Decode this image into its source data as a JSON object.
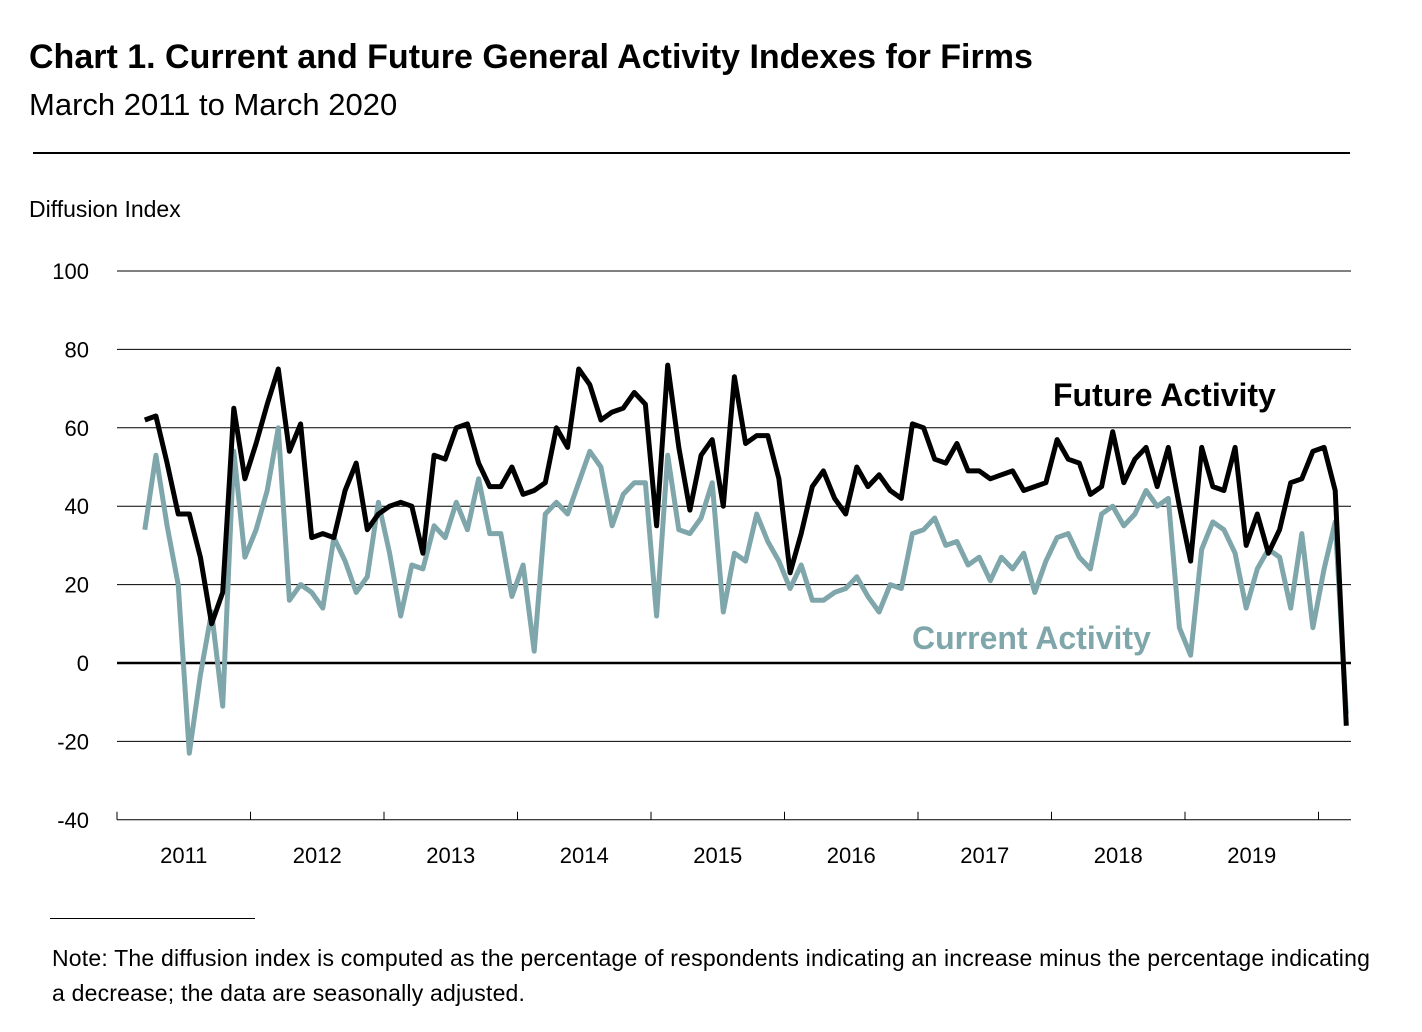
{
  "title": "Chart 1. Current and Future General Activity Indexes for Firms",
  "subtitle": "March 2011 to March 2020",
  "note": "Note:  The diffusion index is computed as the percentage of respondents indicating an increase minus the percentage indicating a decrease; the data are seasonally adjusted.",
  "chart_data": {
    "type": "line",
    "title": "Chart 1. Current and Future General Activity Indexes for Firms",
    "subtitle": "March 2011 to March 2020",
    "ylabel": "Diffusion Index",
    "xlabel": "",
    "ylim": [
      -40,
      100
    ],
    "yticks": [
      100,
      80,
      60,
      40,
      20,
      0,
      -20,
      -40
    ],
    "xtick_labels": [
      "2011",
      "2012",
      "2013",
      "2014",
      "2015",
      "2016",
      "2017",
      "2018",
      "2019"
    ],
    "x_start": "2011-03",
    "x_end": "2020-03",
    "frequency": "monthly",
    "grid": "horizontal",
    "series": [
      {
        "name": "Future Activity",
        "color": "#000000",
        "values": [
          62,
          63,
          51,
          38,
          38,
          27,
          10,
          18,
          65,
          47,
          56,
          66,
          75,
          54,
          61,
          32,
          33,
          32,
          44,
          51,
          34,
          38,
          40,
          41,
          40,
          28,
          53,
          52,
          60,
          61,
          51,
          45,
          45,
          50,
          43,
          44,
          46,
          60,
          55,
          75,
          71,
          62,
          64,
          65,
          69,
          66,
          35,
          76,
          55,
          39,
          53,
          57,
          40,
          73,
          56,
          58,
          58,
          47,
          23,
          33,
          45,
          49,
          42,
          38,
          50,
          45,
          48,
          44,
          42,
          61,
          60,
          52,
          51,
          56,
          49,
          49,
          47,
          48,
          49,
          44,
          45,
          46,
          57,
          52,
          51,
          43,
          45,
          59,
          46,
          52,
          55,
          45,
          55,
          40,
          26,
          55,
          45,
          44,
          55,
          30,
          38,
          28,
          34,
          46,
          47,
          54,
          55,
          44,
          -16
        ]
      },
      {
        "name": "Current Activity",
        "color": "#7fa6aa",
        "values": [
          34,
          53,
          35,
          20,
          -23,
          -3,
          13,
          -11,
          54,
          27,
          34,
          44,
          60,
          16,
          20,
          18,
          14,
          32,
          26,
          18,
          22,
          41,
          28,
          12,
          25,
          24,
          35,
          32,
          41,
          34,
          47,
          33,
          33,
          17,
          25,
          3,
          38,
          41,
          38,
          46,
          54,
          50,
          35,
          43,
          46,
          46,
          12,
          53,
          34,
          33,
          37,
          46,
          13,
          28,
          26,
          38,
          31,
          26,
          19,
          25,
          16,
          16,
          18,
          19,
          22,
          17,
          13,
          20,
          19,
          33,
          34,
          37,
          30,
          31,
          25,
          27,
          21,
          27,
          24,
          28,
          18,
          26,
          32,
          33,
          27,
          24,
          38,
          40,
          35,
          38,
          44,
          40,
          42,
          9,
          2,
          29,
          36,
          34,
          28,
          14,
          24,
          29,
          27,
          14,
          33,
          9,
          24,
          36,
          -13
        ]
      }
    ]
  }
}
